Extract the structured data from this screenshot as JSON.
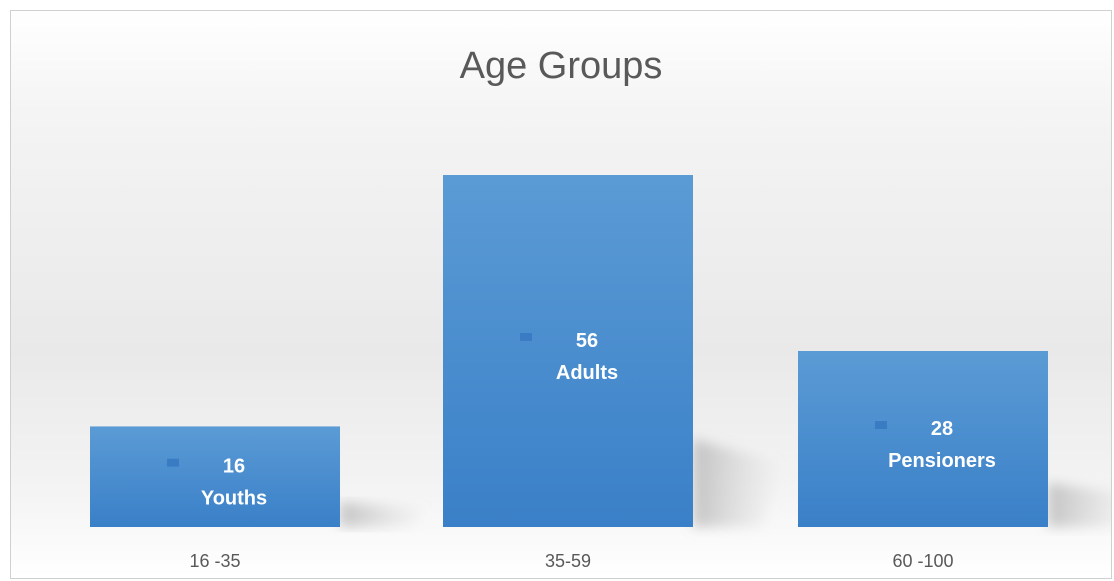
{
  "chart_data": {
    "type": "bar",
    "title": "Age Groups",
    "categories": [
      "16 -35",
      "35-59",
      "60 -100"
    ],
    "series": [
      {
        "values": [
          16,
          56,
          28
        ],
        "labels": [
          "Youths",
          "Adults",
          "Pensioners"
        ]
      }
    ],
    "ylim": [
      0,
      63
    ],
    "grid": false,
    "legend": "none",
    "colors": {
      "bar_top": "#5b9bd5",
      "bar_bottom": "#3a80c8",
      "label_text": "#ffffff",
      "axis_text": "#595959"
    }
  }
}
